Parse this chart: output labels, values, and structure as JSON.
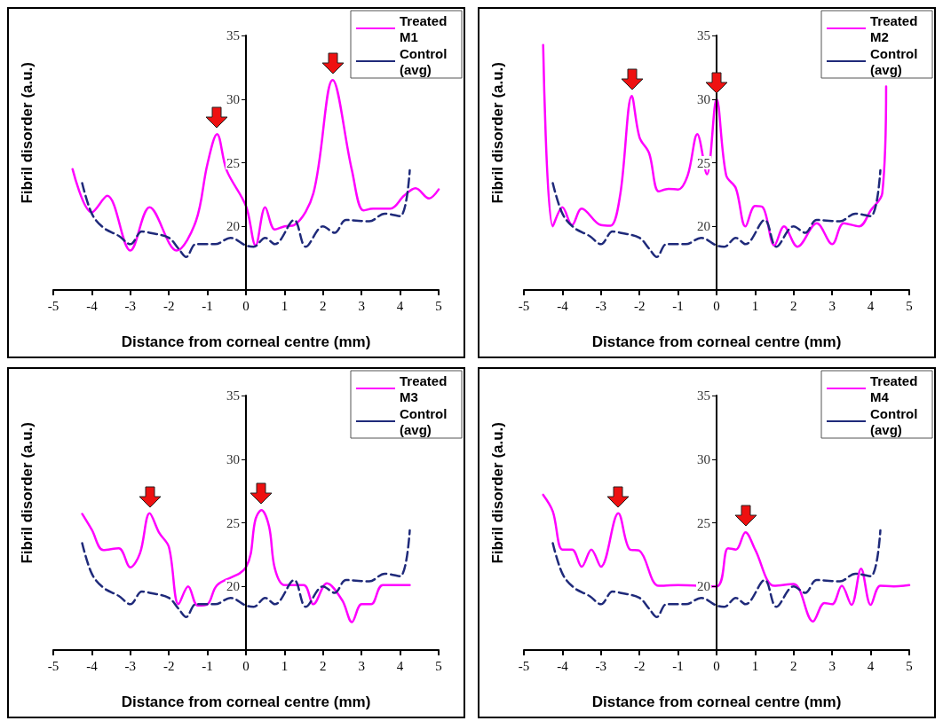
{
  "chart_data": [
    {
      "type": "line",
      "xlabel": "Distance from corneal centre (mm)",
      "ylabel": "Fibril disorder (a.u.)",
      "xlim": [
        -5,
        5
      ],
      "xticks": [
        -5,
        -4,
        -3,
        -2,
        -1,
        0,
        1,
        2,
        3,
        4,
        5
      ],
      "ylim": [
        15,
        35
      ],
      "yticks": [
        20,
        25,
        30,
        35
      ],
      "grid": false,
      "legend": "top right",
      "marker": "none",
      "series": [
        {
          "name": "Treated M1",
          "color": "#ff00ff",
          "line_style": "solid",
          "x": [
            -4.5,
            -4.0,
            -3.6,
            -3.0,
            -2.5,
            -1.8,
            -1.3,
            -1.0,
            -0.75,
            -0.5,
            0,
            0.25,
            0.5,
            0.75,
            1.0,
            1.25,
            1.75,
            2.25,
            2.75,
            3.05,
            3.3,
            3.75,
            4.1,
            4.4,
            4.75,
            5.0
          ],
          "values": [
            24.5,
            21.1,
            22.4,
            18.1,
            21.5,
            18.1,
            20.4,
            24.9,
            27.25,
            24.4,
            21.6,
            18.5,
            21.5,
            19.75,
            20,
            20.1,
            22.6,
            31.5,
            24.4,
            21.25,
            21.4,
            21.4,
            22.4,
            23,
            22.2,
            22.9
          ]
        },
        {
          "name": "Control (avg)",
          "color": "#1f2a7a",
          "line_style": "dashed",
          "x": [
            -4.25,
            -4.0,
            -3.7,
            -3.3,
            -3.0,
            -2.7,
            -2.5,
            -2.0,
            -1.75,
            -1.55,
            -1.3,
            -0.8,
            -0.4,
            0,
            0.2,
            0.5,
            0.75,
            1.25,
            1.55,
            2.0,
            2.3,
            2.6,
            3.2,
            3.6,
            4.0,
            4.25
          ],
          "values": [
            23.4,
            21.0,
            19.9,
            19.25,
            18.6,
            19.6,
            19.5,
            19.1,
            18.25,
            17.6,
            18.6,
            18.6,
            19.1,
            18.5,
            18.4,
            19.1,
            18.6,
            20.5,
            18.4,
            20.0,
            19.5,
            20.5,
            20.4,
            21.0,
            20.8,
            24.4
          ]
        }
      ]
    },
    {
      "type": "line",
      "xlabel": "Distance from corneal centre (mm)",
      "ylabel": "Fibril disorder (a.u.)",
      "xlim": [
        -5,
        5
      ],
      "xticks": [
        -5,
        -4,
        -3,
        -2,
        -1,
        0,
        1,
        2,
        3,
        4,
        5
      ],
      "ylim": [
        15,
        35
      ],
      "yticks": [
        20,
        25,
        30,
        35
      ],
      "grid": false,
      "legend": "top right",
      "marker": "none",
      "series": [
        {
          "name": "Treated M2",
          "color": "#ff00ff",
          "line_style": "solid",
          "x": [
            -4.5,
            -4.25,
            -4.0,
            -3.75,
            -3.5,
            -3.0,
            -2.75,
            -2.5,
            -2.2,
            -2.0,
            -1.75,
            -1.5,
            -1.25,
            -1.0,
            -0.75,
            -0.5,
            -0.25,
            0,
            0.25,
            0.5,
            0.75,
            1.0,
            1.2,
            1.5,
            1.75,
            2.1,
            2.6,
            3.0,
            3.3,
            3.7,
            4.0,
            4.3,
            4.4
          ],
          "values": [
            34.25,
            20,
            21.5,
            20.1,
            21.4,
            20.1,
            20.05,
            22.5,
            30.25,
            27,
            25.75,
            22.75,
            22.95,
            22.9,
            24,
            27.25,
            24.1,
            30,
            24,
            23,
            20,
            21.6,
            21.5,
            18.5,
            20,
            18.4,
            20.25,
            18.6,
            20.25,
            20,
            21.25,
            22.6,
            31
          ]
        },
        {
          "name": "Control (avg)",
          "color": "#1f2a7a",
          "line_style": "dashed",
          "x": [
            -4.25,
            -4.0,
            -3.7,
            -3.3,
            -3.0,
            -2.7,
            -2.5,
            -2.0,
            -1.75,
            -1.55,
            -1.3,
            -0.8,
            -0.4,
            0,
            0.2,
            0.5,
            0.75,
            1.25,
            1.55,
            2.0,
            2.3,
            2.6,
            3.2,
            3.6,
            4.0,
            4.25
          ],
          "values": [
            23.4,
            21.0,
            19.9,
            19.25,
            18.6,
            19.6,
            19.5,
            19.1,
            18.25,
            17.6,
            18.6,
            18.6,
            19.1,
            18.5,
            18.4,
            19.1,
            18.6,
            20.5,
            18.4,
            20.0,
            19.5,
            20.5,
            20.4,
            21.0,
            20.8,
            24.4
          ]
        }
      ]
    },
    {
      "type": "line",
      "xlabel": "Distance from corneal centre (mm)",
      "ylabel": "Fibril disorder (a.u.)",
      "xlim": [
        -5,
        5
      ],
      "xticks": [
        -5,
        -4,
        -3,
        -2,
        -1,
        0,
        1,
        2,
        3,
        4,
        5
      ],
      "ylim": [
        15,
        35
      ],
      "yticks": [
        20,
        25,
        30,
        35
      ],
      "grid": false,
      "legend": "top right",
      "marker": "none",
      "series": [
        {
          "name": "Treated M3",
          "color": "#ff00ff",
          "line_style": "solid",
          "x": [
            -4.25,
            -4.0,
            -3.7,
            -3.3,
            -3.0,
            -2.75,
            -2.5,
            -2.25,
            -2.0,
            -1.75,
            -1.5,
            -1.25,
            -1.0,
            -0.75,
            0,
            0.25,
            0.4,
            0.6,
            0.75,
            1.0,
            1.5,
            1.75,
            2.1,
            2.5,
            2.75,
            3.0,
            3.25,
            3.55,
            4.25
          ],
          "values": [
            25.7,
            24.45,
            22.85,
            23,
            21.5,
            22.6,
            25.75,
            24.2,
            23.1,
            18.6,
            20,
            18.5,
            18.6,
            20.1,
            21.5,
            25.3,
            26,
            24.7,
            21.4,
            20.1,
            20.1,
            18.6,
            20.25,
            18.9,
            17.2,
            18.6,
            18.6,
            20.1,
            20.1
          ]
        },
        {
          "name": "Control (avg)",
          "color": "#1f2a7a",
          "line_style": "dashed",
          "x": [
            -4.25,
            -4.0,
            -3.7,
            -3.3,
            -3.0,
            -2.7,
            -2.5,
            -2.0,
            -1.75,
            -1.55,
            -1.3,
            -0.8,
            -0.4,
            0,
            0.2,
            0.5,
            0.75,
            1.25,
            1.55,
            2.0,
            2.3,
            2.6,
            3.2,
            3.6,
            4.0,
            4.25
          ],
          "values": [
            23.4,
            21.0,
            19.9,
            19.25,
            18.6,
            19.6,
            19.5,
            19.1,
            18.25,
            17.6,
            18.6,
            18.6,
            19.1,
            18.5,
            18.4,
            19.1,
            18.6,
            20.5,
            18.4,
            20.0,
            19.5,
            20.5,
            20.4,
            21.0,
            20.8,
            24.4
          ]
        }
      ]
    },
    {
      "type": "line",
      "xlabel": "Distance from corneal centre (mm)",
      "ylabel": "Fibril disorder (a.u.)",
      "xlim": [
        -5,
        5
      ],
      "xticks": [
        -5,
        -4,
        -3,
        -2,
        -1,
        0,
        1,
        2,
        3,
        4,
        5
      ],
      "ylim": [
        15,
        35
      ],
      "yticks": [
        20,
        25,
        30,
        35
      ],
      "grid": false,
      "legend": "top right",
      "marker": "none",
      "series": [
        {
          "name": "Treated M4",
          "color": "#ff00ff",
          "line_style": "solid",
          "x": [
            -4.5,
            -4.25,
            -4.0,
            -3.75,
            -3.5,
            -3.25,
            -3.0,
            -2.55,
            -2.25,
            -2.0,
            -1.5,
            -1.0,
            0,
            0.3,
            0.5,
            0.75,
            1.0,
            1.5,
            2.0,
            2.5,
            2.8,
            3.0,
            3.25,
            3.5,
            3.75,
            4.0,
            4.25,
            4.6,
            5.0
          ],
          "values": [
            27.2,
            25.9,
            22.9,
            22.9,
            21.55,
            22.9,
            21.55,
            25.75,
            22.9,
            22.8,
            20.05,
            20.1,
            20,
            23,
            22.9,
            24.25,
            22.9,
            20.05,
            20.2,
            17.25,
            18.7,
            18.6,
            20.05,
            18.55,
            21.4,
            18.55,
            20.05,
            20,
            20.1
          ]
        },
        {
          "name": "Control (avg)",
          "color": "#1f2a7a",
          "line_style": "dashed",
          "x": [
            -4.25,
            -4.0,
            -3.7,
            -3.3,
            -3.0,
            -2.7,
            -2.5,
            -2.0,
            -1.75,
            -1.55,
            -1.3,
            -0.8,
            -0.4,
            0,
            0.2,
            0.5,
            0.75,
            1.25,
            1.55,
            2.0,
            2.3,
            2.6,
            3.2,
            3.6,
            4.0,
            4.25
          ],
          "values": [
            23.4,
            21.0,
            19.9,
            19.25,
            18.6,
            19.6,
            19.5,
            19.1,
            18.25,
            17.6,
            18.6,
            18.6,
            19.1,
            18.5,
            18.4,
            19.1,
            18.6,
            20.5,
            18.4,
            20.0,
            19.5,
            20.5,
            20.4,
            21.0,
            20.8,
            24.4
          ]
        }
      ]
    }
  ]
}
